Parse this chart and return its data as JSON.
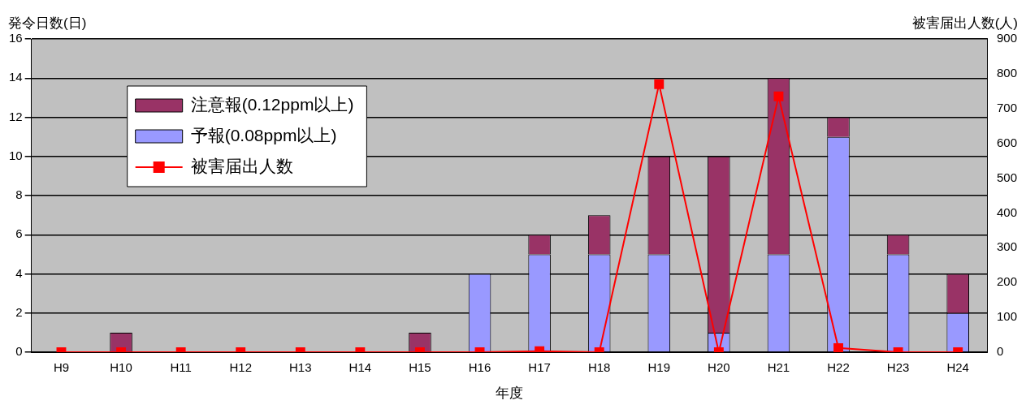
{
  "chart_data": {
    "type": "bar",
    "xlabel": "年度",
    "ylabel": "発令日数(日)",
    "y2label": "被害届出人数(人)",
    "categories": [
      "H9",
      "H10",
      "H11",
      "H12",
      "H13",
      "H14",
      "H15",
      "H16",
      "H17",
      "H18",
      "H19",
      "H20",
      "H21",
      "H22",
      "H23",
      "H24"
    ],
    "stacked": true,
    "grid": "y",
    "legend": "top left",
    "marker": "square",
    "ylim": [
      0,
      16
    ],
    "yticks": [
      0,
      2,
      4,
      6,
      8,
      10,
      12,
      14,
      16
    ],
    "y2lim": [
      0,
      900
    ],
    "y2ticks": [
      0,
      100,
      200,
      300,
      400,
      500,
      600,
      700,
      800,
      900
    ],
    "series": [
      {
        "name": "予報(0.08ppm以上)",
        "color": "#9999ff",
        "values": [
          0,
          0,
          0,
          0,
          0,
          0,
          0,
          4,
          5,
          5,
          5,
          1,
          5,
          11,
          5,
          2
        ]
      },
      {
        "name": "注意報(0.12ppm以上)",
        "color": "#993366",
        "values": [
          0,
          1,
          0,
          0,
          0,
          0,
          1,
          0,
          1,
          2,
          5,
          9,
          9,
          1,
          1,
          2
        ]
      },
      {
        "name": "被害届出人数",
        "type": "line",
        "axis": "y2",
        "color": "#ff0000",
        "values": [
          0,
          0,
          0,
          0,
          0,
          0,
          0,
          0,
          3,
          0,
          770,
          0,
          735,
          12,
          0,
          0
        ]
      }
    ]
  }
}
